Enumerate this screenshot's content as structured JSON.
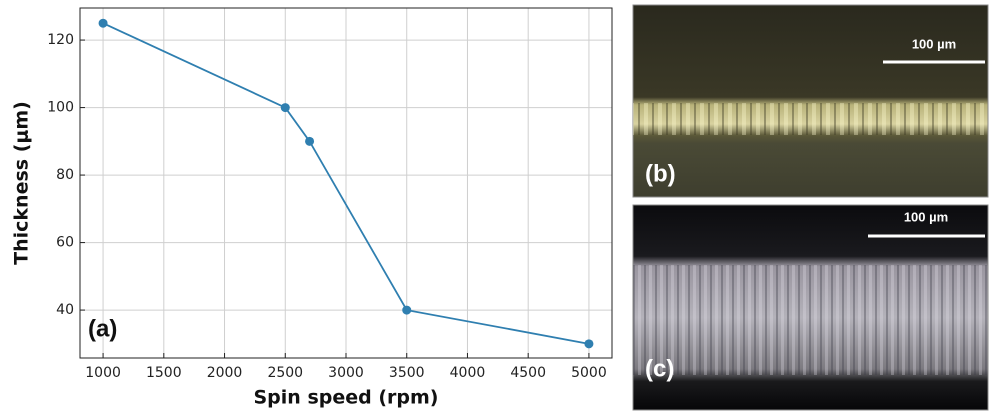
{
  "chart_data": {
    "type": "line",
    "xlabel": "Spin speed (rpm)",
    "ylabel": "Thickness (μm)",
    "panel_label": "(a)",
    "x": [
      1000,
      2500,
      2700,
      3500,
      5000
    ],
    "values": [
      125,
      100,
      90,
      40,
      30
    ],
    "color": "#2f7fb0",
    "xlim": [
      810,
      5190
    ],
    "ylim": [
      25.8,
      129.5
    ],
    "xticks": [
      1000,
      1500,
      2000,
      2500,
      3000,
      3500,
      4000,
      4500,
      5000
    ],
    "yticks": [
      40,
      60,
      80,
      100,
      120
    ],
    "grid": true
  },
  "images": [
    {
      "label": "(b)",
      "scale_bar": "100 µm"
    },
    {
      "label": "(c)",
      "scale_bar": "100 µm"
    }
  ]
}
